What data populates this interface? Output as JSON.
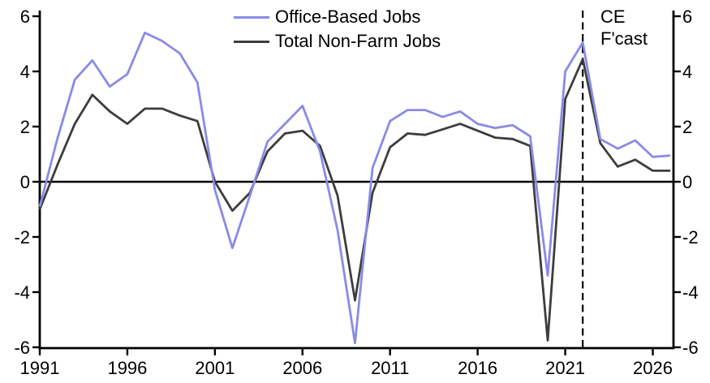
{
  "chart_data": {
    "type": "line",
    "title": "",
    "xlabel": "",
    "ylabel": "",
    "ylim": [
      -6,
      6
    ],
    "y_ticks": [
      6,
      4,
      2,
      0,
      -2,
      -4,
      -6
    ],
    "y_axis_sides": "both",
    "x_ticks": [
      1991,
      1996,
      2001,
      2006,
      2011,
      2016,
      2021,
      2026
    ],
    "grid": false,
    "zero_line": true,
    "legend_position": "top-center",
    "x": [
      1991,
      1992,
      1993,
      1994,
      1995,
      1996,
      1997,
      1998,
      1999,
      2000,
      2001,
      2002,
      2003,
      2004,
      2005,
      2006,
      2007,
      2008,
      2009,
      2010,
      2011,
      2012,
      2013,
      2014,
      2015,
      2016,
      2017,
      2018,
      2019,
      2020,
      2021,
      2022,
      2023,
      2024,
      2025,
      2026,
      2027
    ],
    "series": [
      {
        "name": "Total Non-Farm Jobs",
        "color": "#3d3d3d",
        "values": [
          -1.0,
          0.6,
          2.1,
          3.15,
          2.55,
          2.1,
          2.65,
          2.65,
          2.4,
          2.2,
          0.0,
          -1.05,
          -0.4,
          1.1,
          1.75,
          1.85,
          1.3,
          -0.5,
          -4.3,
          -0.4,
          1.25,
          1.75,
          1.7,
          1.9,
          2.1,
          1.85,
          1.6,
          1.55,
          1.3,
          -5.75,
          3.0,
          4.45,
          1.4,
          0.55,
          0.8,
          0.4,
          0.4
        ]
      },
      {
        "name": "Office-Based Jobs",
        "color": "#8a8ae8",
        "values": [
          -0.9,
          1.55,
          3.7,
          4.4,
          3.45,
          3.9,
          5.4,
          5.1,
          4.65,
          3.6,
          -0.3,
          -2.4,
          -0.5,
          1.45,
          2.1,
          2.75,
          1.1,
          -1.75,
          -5.85,
          0.5,
          2.2,
          2.6,
          2.6,
          2.35,
          2.55,
          2.1,
          1.95,
          2.05,
          1.65,
          -3.4,
          4.0,
          5.05,
          1.55,
          1.2,
          1.5,
          0.9,
          0.95
        ]
      }
    ],
    "forecast": {
      "x": 2022,
      "label_line1": "CE",
      "label_line2": "F'cast"
    }
  },
  "legend": {
    "items": [
      {
        "label": "Office-Based Jobs"
      },
      {
        "label": "Total Non-Farm Jobs"
      }
    ]
  }
}
